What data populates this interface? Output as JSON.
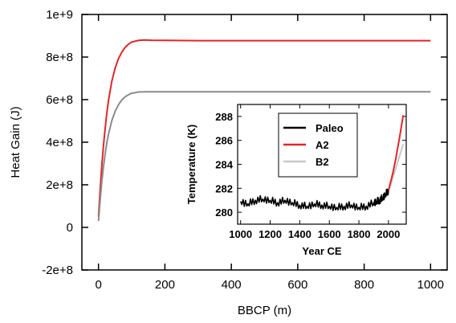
{
  "chart_data": [
    {
      "type": "line",
      "xlabel": "BBCP (m)",
      "ylabel": "Heat Gain (J)",
      "xlim": [
        -50,
        1050
      ],
      "ylim": [
        -200000000,
        1000000000
      ],
      "xticks": [
        0,
        200,
        400,
        600,
        800,
        1000
      ],
      "yticks": [
        -200000000,
        0,
        200000000,
        400000000,
        600000000,
        800000000,
        1000000000
      ],
      "xtick_labels": [
        "0",
        "200",
        "400",
        "600",
        "800",
        "1000"
      ],
      "ytick_labels": [
        "-2e+8",
        "0",
        "2e+8",
        "4e+8",
        "6e+8",
        "8e+8",
        "1e+9"
      ],
      "grid": false,
      "series": [
        {
          "color": "#e0262a",
          "x": [
            0,
            5,
            10,
            15,
            20,
            25,
            30,
            40,
            50,
            60,
            70,
            80,
            90,
            100,
            120,
            140,
            160,
            200,
            300,
            400,
            500,
            600,
            700,
            800,
            900,
            1000
          ],
          "y": [
            50000000,
            180000000,
            290000000,
            385000000,
            465000000,
            535000000,
            595000000,
            685000000,
            748000000,
            792000000,
            822000000,
            845000000,
            860000000,
            870000000,
            878000000,
            880000000,
            879000000,
            878000000,
            877000000,
            877000000,
            877000000,
            877000000,
            877000000,
            877000000,
            877000000,
            877000000
          ]
        },
        {
          "color": "#8c8c8c",
          "x": [
            0,
            5,
            10,
            15,
            20,
            25,
            30,
            40,
            50,
            60,
            70,
            80,
            90,
            100,
            120,
            140,
            160,
            200,
            300,
            400,
            500,
            600,
            700,
            800,
            900,
            1000
          ],
          "y": [
            30000000,
            130000000,
            215000000,
            285000000,
            345000000,
            395000000,
            437000000,
            500000000,
            545000000,
            576000000,
            598000000,
            613000000,
            623000000,
            630000000,
            636000000,
            637000000,
            637000000,
            637000000,
            637000000,
            637000000,
            637000000,
            637000000,
            637000000,
            637000000,
            637000000,
            637000000
          ]
        }
      ]
    },
    {
      "type": "line",
      "xlabel": "Year CE",
      "ylabel": "Temperature (K)",
      "xlim": [
        980,
        2120
      ],
      "ylim": [
        279,
        289
      ],
      "xticks": [
        1000,
        1200,
        1400,
        1600,
        1800,
        2000
      ],
      "yticks": [
        280,
        282,
        284,
        286,
        288
      ],
      "xtick_labels": [
        "1000",
        "1200",
        "1400",
        "1600",
        "1800",
        "2000"
      ],
      "ytick_labels": [
        "280",
        "282",
        "284",
        "286",
        "288"
      ],
      "grid": false,
      "legend": {
        "position": "top-center",
        "entries": [
          "Paleo",
          "A2",
          "B2"
        ]
      },
      "series": [
        {
          "name": "Paleo",
          "color": "#000000",
          "x": [
            1000,
            1050,
            1100,
            1150,
            1200,
            1250,
            1300,
            1350,
            1400,
            1450,
            1500,
            1550,
            1600,
            1650,
            1700,
            1750,
            1800,
            1850,
            1900,
            1920,
            1940,
            1960,
            1980,
            2000
          ],
          "y": [
            280.9,
            280.7,
            281.0,
            281.1,
            281.0,
            280.8,
            281.0,
            280.8,
            280.6,
            280.5,
            280.7,
            280.6,
            280.5,
            280.4,
            280.5,
            280.6,
            280.4,
            280.5,
            280.8,
            280.9,
            281.0,
            281.2,
            281.5,
            281.8
          ]
        },
        {
          "name": "A2",
          "color": "#e0262a",
          "x": [
            2000,
            2010,
            2020,
            2030,
            2040,
            2050,
            2060,
            2070,
            2080,
            2090,
            2100
          ],
          "y": [
            281.8,
            282.3,
            282.8,
            283.3,
            283.9,
            284.5,
            285.2,
            285.9,
            286.6,
            287.4,
            288.1
          ]
        },
        {
          "name": "B2",
          "color": "#c8c8c8",
          "x": [
            2000,
            2010,
            2020,
            2030,
            2040,
            2050,
            2060,
            2070,
            2080,
            2090,
            2100
          ],
          "y": [
            281.8,
            282.1,
            282.5,
            282.9,
            283.3,
            283.7,
            284.1,
            284.5,
            284.9,
            285.3,
            285.7
          ]
        }
      ]
    }
  ]
}
